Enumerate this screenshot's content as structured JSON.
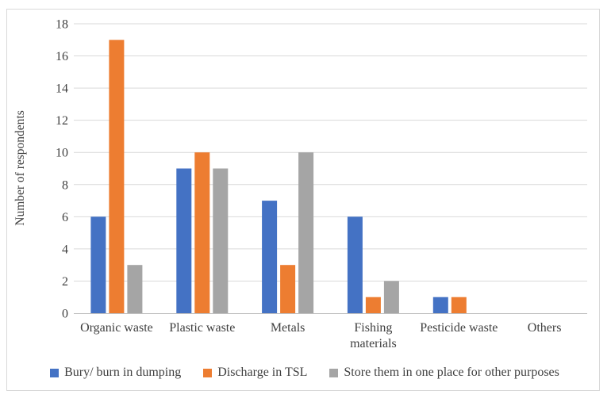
{
  "chart_data": {
    "type": "bar",
    "title": "",
    "xlabel": "",
    "ylabel": "Number of respondents",
    "ylim": [
      0,
      18
    ],
    "yticks": [
      0,
      2,
      4,
      6,
      8,
      10,
      12,
      14,
      16,
      18
    ],
    "grid": true,
    "legend_position": "bottom",
    "categories": [
      "Organic waste",
      "Plastic waste",
      "Metals",
      "Fishing materials",
      "Pesticide waste",
      "Others"
    ],
    "category_display_lines": [
      [
        "Organic waste"
      ],
      [
        "Plastic waste"
      ],
      [
        "Metals"
      ],
      [
        "Fishing",
        "materials"
      ],
      [
        "Pesticide waste"
      ],
      [
        "Others"
      ]
    ],
    "series": [
      {
        "name": "Bury/ burn in dumping",
        "color": "#4472C4",
        "values": [
          6,
          9,
          7,
          6,
          1,
          0
        ]
      },
      {
        "name": "Discharge in TSL",
        "color": "#ED7D31",
        "values": [
          17,
          10,
          3,
          1,
          1,
          0
        ]
      },
      {
        "name": "Store them in one place for other purposes",
        "color": "#A5A5A5",
        "values": [
          3,
          9,
          10,
          2,
          0,
          0
        ]
      }
    ]
  },
  "style": {
    "grid_color": "#d9d9d9",
    "axis_color": "#bfbfbf",
    "text_color": "#3f3f3f",
    "frame_color": "#d9d9d9"
  }
}
